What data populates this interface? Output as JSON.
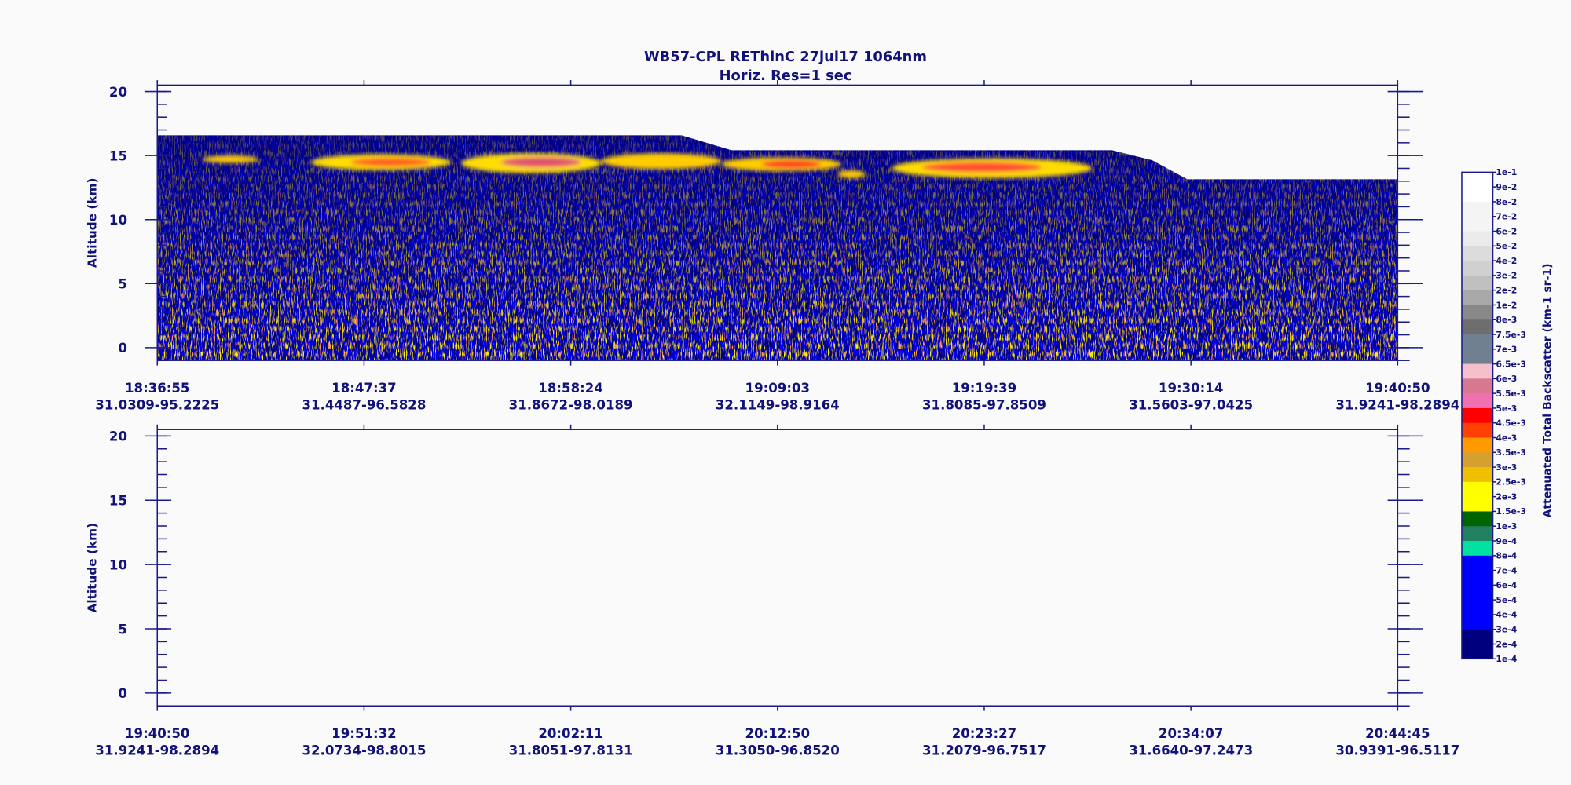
{
  "figure": {
    "title": "WB57-CPL  REThinC  27jul17  1064nm",
    "subtitle": "Horiz. Res=1 sec"
  },
  "chart_data": [
    {
      "type": "curtain",
      "y_label": "Altitude (km)",
      "ylim": [
        -1,
        20.5
      ],
      "yticks": [
        0,
        5,
        10,
        15,
        20
      ],
      "yminor": 1,
      "xticks": [
        {
          "time": "18:36:55",
          "position": "31.0309-95.2225"
        },
        {
          "time": "18:47:37",
          "position": "31.4487-96.5828"
        },
        {
          "time": "18:58:24",
          "position": "31.8672-98.0189"
        },
        {
          "time": "19:09:03",
          "position": "32.1149-98.9164"
        },
        {
          "time": "19:19:39",
          "position": "31.8085-97.8509"
        },
        {
          "time": "19:30:14",
          "position": "31.5603-97.0425"
        },
        {
          "time": "19:40:50",
          "position": "31.9241-98.2894"
        }
      ]
    },
    {
      "type": "curtain",
      "y_label": "Altitude (km)",
      "ylim": [
        -1,
        20.5
      ],
      "yticks": [
        0,
        5,
        10,
        15,
        20
      ],
      "yminor": 1,
      "xticks": [
        {
          "time": "19:40:50",
          "position": "31.9241-98.2894"
        },
        {
          "time": "19:51:32",
          "position": "32.0734-98.8015"
        },
        {
          "time": "20:02:11",
          "position": "31.8051-97.8131"
        },
        {
          "time": "20:12:50",
          "position": "31.3050-96.8520"
        },
        {
          "time": "20:23:27",
          "position": "31.2079-96.7517"
        },
        {
          "time": "20:34:07",
          "position": "31.6640-97.2473"
        },
        {
          "time": "20:44:45",
          "position": "30.9391-96.5117"
        }
      ]
    }
  ],
  "colorbar": {
    "label": "Attenuated Total Backscatter (km-1 sr-1)",
    "ticks": [
      {
        "value": 0.1,
        "label": "1e-1"
      },
      {
        "value": 0.09,
        "label": "9e-2"
      },
      {
        "value": 0.08,
        "label": "8e-2"
      },
      {
        "value": 0.07,
        "label": "7e-2"
      },
      {
        "value": 0.06,
        "label": "6e-2"
      },
      {
        "value": 0.05,
        "label": "5e-2"
      },
      {
        "value": 0.04,
        "label": "4e-2"
      },
      {
        "value": 0.03,
        "label": "3e-2"
      },
      {
        "value": 0.02,
        "label": "2e-2"
      },
      {
        "value": 0.01,
        "label": "1e-2"
      },
      {
        "value": 0.008,
        "label": "8e-3"
      },
      {
        "value": 0.0075,
        "label": "7.5e-3"
      },
      {
        "value": 0.007,
        "label": "7e-3"
      },
      {
        "value": 0.0065,
        "label": "6.5e-3"
      },
      {
        "value": 0.006,
        "label": "6e-3"
      },
      {
        "value": 0.0055,
        "label": "5.5e-3"
      },
      {
        "value": 0.005,
        "label": "5e-3"
      },
      {
        "value": 0.0045,
        "label": "4.5e-3"
      },
      {
        "value": 0.004,
        "label": "4e-3"
      },
      {
        "value": 0.0035,
        "label": "3.5e-3"
      },
      {
        "value": 0.003,
        "label": "3e-3"
      },
      {
        "value": 0.0025,
        "label": "2.5e-3"
      },
      {
        "value": 0.002,
        "label": "2e-3"
      },
      {
        "value": 0.0015,
        "label": "1.5e-3"
      },
      {
        "value": 0.001,
        "label": "1e-3"
      },
      {
        "value": 0.0009,
        "label": "9e-4"
      },
      {
        "value": 0.0008,
        "label": "8e-4"
      },
      {
        "value": 0.0007,
        "label": "7e-4"
      },
      {
        "value": 0.0006,
        "label": "6e-4"
      },
      {
        "value": 0.0005,
        "label": "5e-4"
      },
      {
        "value": 0.0004,
        "label": "4e-4"
      },
      {
        "value": 0.0003,
        "label": "3e-4"
      },
      {
        "value": 0.0002,
        "label": "2e-4"
      },
      {
        "value": 0.0001,
        "label": "1e-4"
      }
    ],
    "colors": [
      "#ffffff",
      "#ffffff",
      "#f4f4f4",
      "#f4f4f4",
      "#ebebeb",
      "#dcdcdc",
      "#d0d0d0",
      "#c0c0c0",
      "#a8a8a8",
      "#888888",
      "#6e6e6e",
      "#708090",
      "#708090",
      "#f4c0cc",
      "#d87890",
      "#f070b0",
      "#ff0000",
      "#ff4000",
      "#ff9900",
      "#d4a030",
      "#f0c000",
      "#ffff00",
      "#ffff00",
      "#006400",
      "#208060",
      "#00e0a0",
      "#0000ff",
      "#0000ff",
      "#0000ff",
      "#0000ff",
      "#0000ff",
      "#00007f",
      "#00007f"
    ]
  }
}
